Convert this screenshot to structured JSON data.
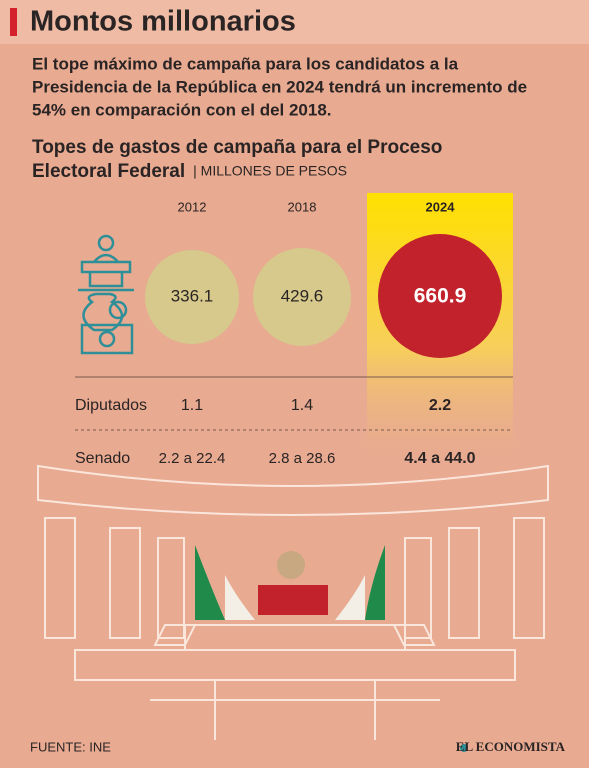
{
  "header": {
    "title": "Montos millonarios",
    "intro": [
      "El tope máximo de campaña para los candidatos a la",
      "Presidencia  de la República en 2024 tendrá un incremento de",
      "54% en comparación con el del 2018."
    ]
  },
  "table": {
    "title": [
      "Topes de gastos de campaña para el Proceso",
      "Electoral Federal"
    ],
    "unit": "| MILLONES DE PESOS",
    "columns": [
      "2012",
      "2018",
      "2024"
    ],
    "presidency": [
      "336.1",
      "429.6",
      "660.9"
    ],
    "rows": [
      {
        "label": "Diputados",
        "values": [
          "1.1",
          "1.4",
          "2.2"
        ]
      },
      {
        "label": "Senado",
        "values": [
          "2.2 a 22.4",
          "2.8 a 28.6",
          "4.4 a 44.0"
        ]
      }
    ]
  },
  "footer": {
    "source": "FUENTE: INE",
    "brand": "EL ECONOMISTA"
  }
}
